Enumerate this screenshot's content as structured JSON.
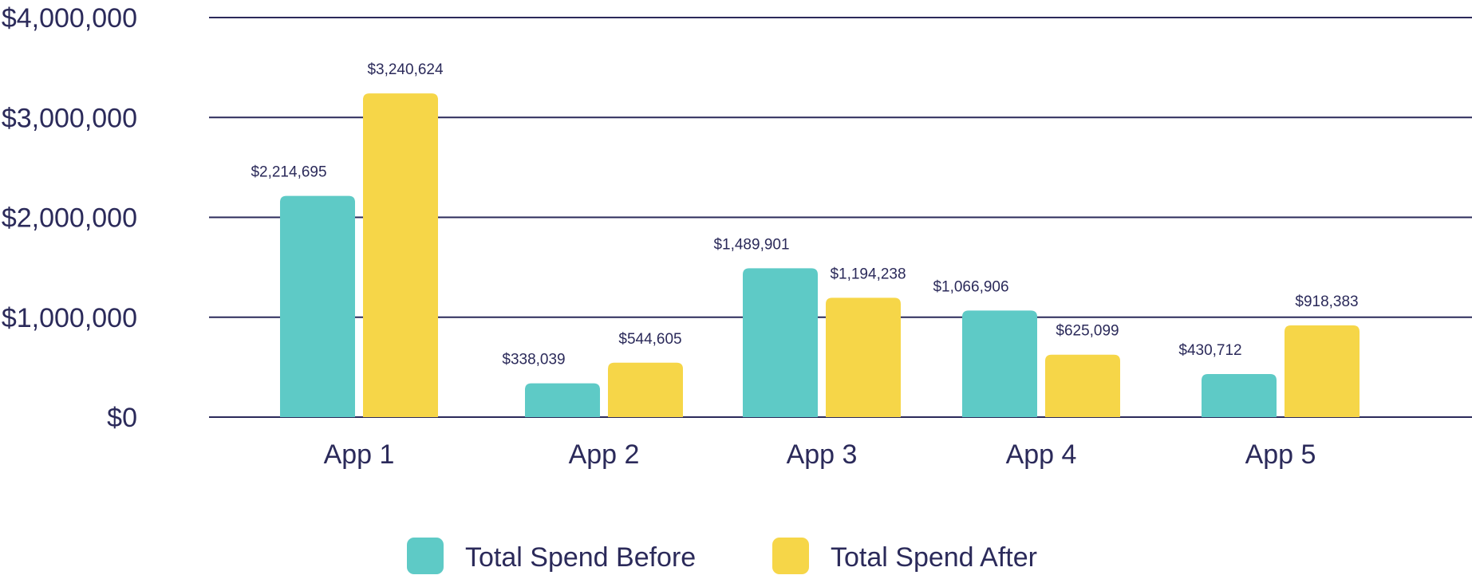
{
  "chart_data": {
    "type": "bar",
    "title": "",
    "xlabel": "",
    "ylabel": "",
    "categories": [
      "App 1",
      "App 2",
      "App 3",
      "App 4",
      "App 5"
    ],
    "series": [
      {
        "name": "Total Spend Before",
        "color": "#5ecac6",
        "values": [
          2214695,
          338039,
          1489901,
          1066906,
          430712
        ],
        "labels": [
          "$2,214,695",
          "$338,039",
          "$1,489,901",
          "$1,066,906",
          "$430,712"
        ]
      },
      {
        "name": "Total Spend After",
        "color": "#f6d648",
        "values": [
          3240624,
          544605,
          1194238,
          625099,
          918383
        ],
        "labels": [
          "$3,240,624",
          "$544,605",
          "$1,194,238",
          "$625,099",
          "$918,383"
        ]
      }
    ],
    "ylim": [
      0,
      4000000
    ],
    "y_ticks": [
      0,
      1000000,
      2000000,
      3000000,
      4000000
    ],
    "y_tick_labels": [
      "$0",
      "$1,000,000",
      "$2,000,000",
      "$3,000,000",
      "$4,000,000"
    ],
    "grid": true,
    "gridline_color": "#2b2a5a",
    "legend_position": "bottom-center"
  }
}
